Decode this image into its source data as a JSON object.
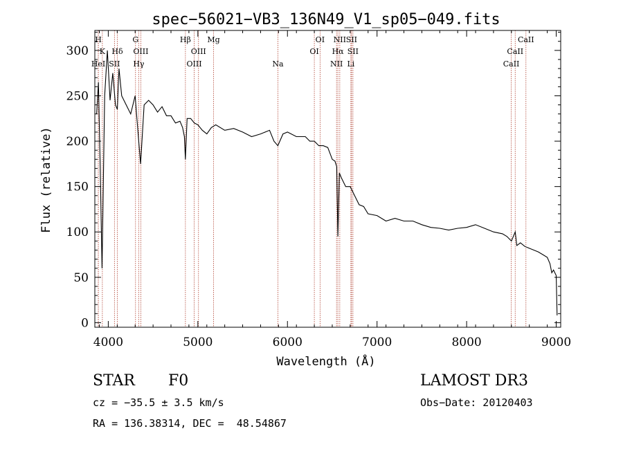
{
  "chart_data": {
    "type": "line",
    "title": "spec−56021−VB3_136N49_V1_sp05−049.fits",
    "xlabel": "Wavelength (Å)",
    "ylabel": "Flux (relative)",
    "xlim": [
      3850,
      9050
    ],
    "ylim": [
      -5,
      322
    ],
    "xticks": [
      4000,
      5000,
      6000,
      7000,
      8000,
      9000
    ],
    "yticks": [
      0,
      50,
      100,
      150,
      200,
      250,
      300
    ],
    "grid": false,
    "series": [
      {
        "name": "flux",
        "x": [
          3870,
          3890,
          3910,
          3930,
          3960,
          3990,
          4020,
          4050,
          4080,
          4101,
          4120,
          4150,
          4200,
          4250,
          4300,
          4320,
          4340,
          4361,
          4400,
          4450,
          4500,
          4550,
          4600,
          4650,
          4700,
          4750,
          4800,
          4830,
          4850,
          4861,
          4880,
          4920,
          4960,
          5000,
          5050,
          5100,
          5150,
          5200,
          5300,
          5400,
          5500,
          5600,
          5700,
          5800,
          5850,
          5893,
          5950,
          6000,
          6100,
          6200,
          6250,
          6300,
          6350,
          6400,
          6450,
          6500,
          6530,
          6550,
          6563,
          6580,
          6600,
          6650,
          6700,
          6750,
          6800,
          6850,
          6900,
          7000,
          7100,
          7200,
          7300,
          7400,
          7500,
          7600,
          7700,
          7800,
          7900,
          8000,
          8100,
          8200,
          8300,
          8400,
          8450,
          8500,
          8542,
          8560,
          8600,
          8650,
          8700,
          8750,
          8800,
          8850,
          8900,
          8930,
          8950,
          8970,
          9000,
          9010
        ],
        "y": [
          230,
          265,
          170,
          60,
          250,
          300,
          245,
          275,
          240,
          235,
          280,
          250,
          240,
          230,
          250,
          225,
          200,
          175,
          240,
          245,
          240,
          232,
          238,
          228,
          228,
          220,
          222,
          215,
          205,
          180,
          225,
          225,
          220,
          218,
          212,
          208,
          215,
          218,
          212,
          214,
          210,
          205,
          208,
          212,
          200,
          195,
          208,
          210,
          205,
          205,
          200,
          200,
          195,
          195,
          193,
          180,
          178,
          172,
          95,
          165,
          160,
          150,
          150,
          140,
          130,
          128,
          120,
          118,
          112,
          115,
          112,
          112,
          108,
          105,
          104,
          102,
          104,
          105,
          108,
          104,
          100,
          98,
          95,
          90,
          100,
          85,
          88,
          84,
          82,
          80,
          78,
          75,
          72,
          65,
          55,
          58,
          52,
          8
        ]
      }
    ],
    "lines": [
      {
        "label": "H",
        "x": 3889,
        "row": 0
      },
      {
        "label": "K",
        "x": 3934,
        "row": 1
      },
      {
        "label": "Hδ",
        "x": 4101,
        "row": 1
      },
      {
        "label": "HeI",
        "x": 3889,
        "row": 2
      },
      {
        "label": "SII",
        "x": 4069,
        "row": 2
      },
      {
        "label": "G",
        "x": 4304,
        "row": 0
      },
      {
        "label": "OIII",
        "x": 4363,
        "row": 1
      },
      {
        "label": "Hγ",
        "x": 4340,
        "row": 2
      },
      {
        "label": "Hβ",
        "x": 4861,
        "row": 0
      },
      {
        "label": "OIII",
        "x": 5007,
        "row": 1
      },
      {
        "label": "OIII",
        "x": 4959,
        "row": 2
      },
      {
        "label": "Mg",
        "x": 5175,
        "row": 0
      },
      {
        "label": "Na",
        "x": 5893,
        "row": 2
      },
      {
        "label": "OI",
        "x": 6364,
        "row": 0
      },
      {
        "label": "OI",
        "x": 6300,
        "row": 1
      },
      {
        "label": "NII",
        "x": 6584,
        "row": 0
      },
      {
        "label": "SII",
        "x": 6716,
        "row": 0
      },
      {
        "label": "Hα",
        "x": 6563,
        "row": 1
      },
      {
        "label": "SII",
        "x": 6731,
        "row": 1
      },
      {
        "label": "NII",
        "x": 6548,
        "row": 2
      },
      {
        "label": "Li",
        "x": 6708,
        "row": 2
      },
      {
        "label": "CaII",
        "x": 8662,
        "row": 0
      },
      {
        "label": "CaII",
        "x": 8542,
        "row": 1
      },
      {
        "label": "CaII",
        "x": 8498,
        "row": 2
      }
    ]
  },
  "info": {
    "object_class": "STAR",
    "subclass": "F0",
    "survey": "LAMOST DR3",
    "redshift": "cz = −35.5 ± 3.5 km/s",
    "obs_date": "Obs−Date: 20120403",
    "coords": "RA = 136.38314, DEC =  48.54867"
  },
  "colors": {
    "spectrum": "#000000",
    "line_marker": "#b04030",
    "axis": "#000000"
  }
}
